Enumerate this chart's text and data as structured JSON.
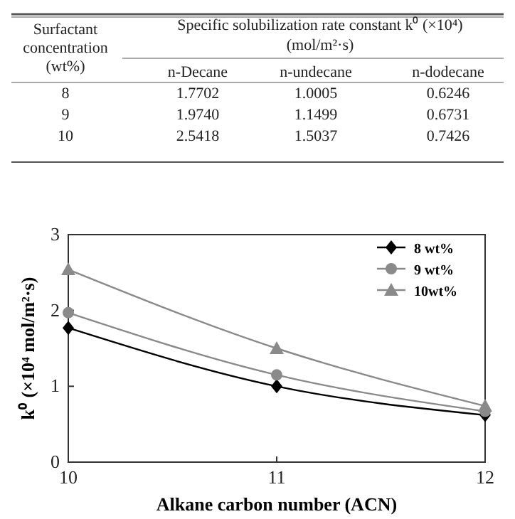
{
  "chart_data": [
    {
      "type": "other",
      "annotations": [
        "Surfactant",
        "concentration",
        "(wt%)",
        "Specific solubilization rate constant k⁰ (×10⁴)",
        "(mol/m²·s)",
        "n-Decane",
        "n-undecane",
        "n-dodecane",
        "8",
        "1.7702",
        "1.0005",
        "0.6246",
        "9",
        "1.9740",
        "1.1499",
        "0.6731",
        "10",
        "2.5418",
        "1.5037",
        "0.7426"
      ]
    },
    {
      "type": "line",
      "xlabel": "Alkane carbon number (ACN)",
      "ylabel": "k⁰ (×10⁴ mol/m²·s)",
      "x": [
        10,
        11,
        12
      ],
      "xlim": [
        10,
        12
      ],
      "xticks": [
        10,
        11,
        12
      ],
      "ylim": [
        0,
        3
      ],
      "yticks": [
        0,
        1,
        2,
        3
      ],
      "grid": false,
      "legend": "top right",
      "line_style": "solid",
      "series": [
        {
          "name": "8 wt%",
          "color": "#000000",
          "marker": "diamond",
          "values": [
            1.77,
            1.0,
            0.62
          ]
        },
        {
          "name": "9 wt%",
          "color": "#8a8a8a",
          "marker": "circle",
          "values": [
            1.97,
            1.15,
            0.67
          ]
        },
        {
          "name": "10wt%",
          "color": "#8a8a8a",
          "marker": "triangle",
          "values": [
            2.54,
            1.5,
            0.74
          ]
        }
      ]
    }
  ]
}
